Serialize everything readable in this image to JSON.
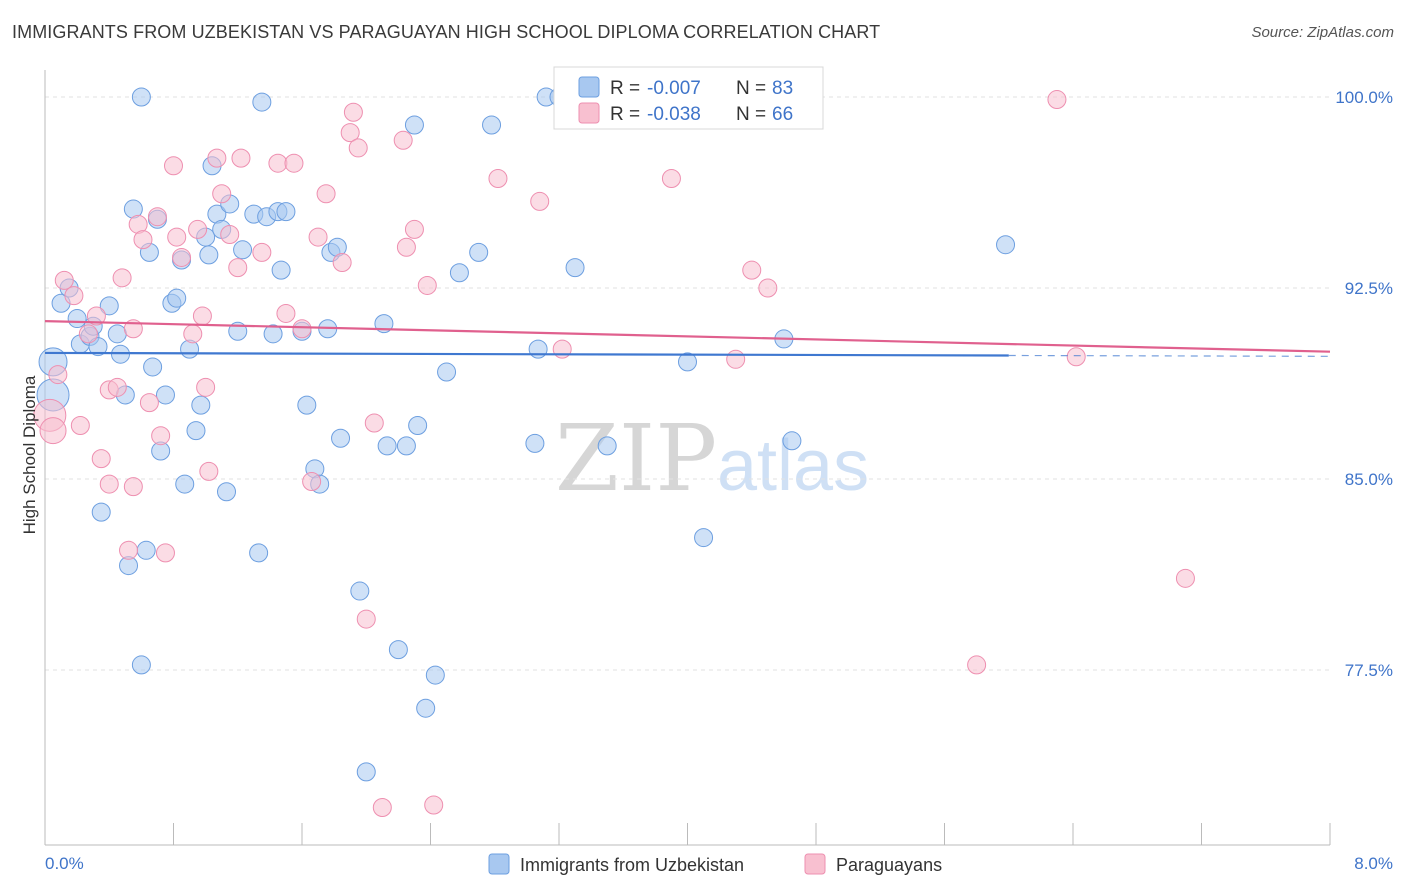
{
  "header": {
    "title": "IMMIGRANTS FROM UZBEKISTAN VS PARAGUAYAN HIGH SCHOOL DIPLOMA CORRELATION CHART",
    "source": "Source: ZipAtlas.com"
  },
  "watermark": {
    "zip": "ZIP",
    "atlas": "atlas"
  },
  "legend_top": {
    "r_label": "R =",
    "n_label": "N =",
    "rows": [
      {
        "r": "-0.007",
        "n": "83",
        "color": "#a8c8f0",
        "stroke": "#6d9fe0"
      },
      {
        "r": "-0.038",
        "n": "66",
        "color": "#f8c0d0",
        "stroke": "#ee8fb0"
      }
    ]
  },
  "chart_data": {
    "type": "scatter",
    "title": "IMMIGRANTS FROM UZBEKISTAN VS PARAGUAYAN HIGH SCHOOL DIPLOMA CORRELATION CHART",
    "xlabel": "",
    "ylabel": "High School Diploma",
    "xlim": [
      0,
      8
    ],
    "ylim": [
      71.5,
      100.8
    ],
    "x_tick_labels": [
      "0.0%",
      "8.0%"
    ],
    "y_ticks": [
      77.5,
      85.0,
      92.5,
      100.0
    ],
    "y_tick_labels": [
      "77.5%",
      "85.0%",
      "92.5%",
      "100.0%"
    ],
    "grid": "horizontal dashed",
    "legend_position": "top-center",
    "series": [
      {
        "name": "Immigrants from Uzbekistan",
        "color": "#a8c8f0",
        "stroke": "#6d9fe0",
        "trend": {
          "x": [
            0.0,
            6.0
          ],
          "y": [
            89.95,
            89.85
          ],
          "dashed_extension_to": 8.0,
          "color": "#3f78d0"
        },
        "points": [
          [
            0.05,
            89.6,
            14
          ],
          [
            0.05,
            88.3,
            16
          ],
          [
            0.1,
            91.9,
            9
          ],
          [
            0.15,
            92.5,
            9
          ],
          [
            0.2,
            91.3,
            9
          ],
          [
            0.22,
            90.3,
            9
          ],
          [
            0.28,
            90.6,
            9
          ],
          [
            0.3,
            91.0,
            9
          ],
          [
            0.33,
            90.2,
            9
          ],
          [
            0.35,
            83.7,
            9
          ],
          [
            0.4,
            91.8,
            9
          ],
          [
            0.45,
            90.7,
            9
          ],
          [
            0.47,
            89.9,
            9
          ],
          [
            0.5,
            88.3,
            9
          ],
          [
            0.52,
            81.6,
            9
          ],
          [
            0.55,
            95.6,
            9
          ],
          [
            0.6,
            77.7,
            9
          ],
          [
            0.63,
            82.2,
            9
          ],
          [
            0.65,
            93.9,
            9
          ],
          [
            0.67,
            89.4,
            9
          ],
          [
            0.7,
            95.2,
            9
          ],
          [
            0.72,
            86.1,
            9
          ],
          [
            0.75,
            88.3,
            9
          ],
          [
            0.79,
            91.9,
            9
          ],
          [
            0.82,
            92.1,
            9
          ],
          [
            0.85,
            93.6,
            9
          ],
          [
            0.87,
            84.8,
            9
          ],
          [
            0.9,
            90.1,
            9
          ],
          [
            0.94,
            86.9,
            9
          ],
          [
            0.97,
            87.9,
            9
          ],
          [
            1.0,
            94.5,
            9
          ],
          [
            1.02,
            93.8,
            9
          ],
          [
            1.04,
            97.3,
            9
          ],
          [
            1.07,
            95.4,
            9
          ],
          [
            1.1,
            94.8,
            9
          ],
          [
            1.13,
            84.5,
            9
          ],
          [
            1.15,
            95.8,
            9
          ],
          [
            1.2,
            90.8,
            9
          ],
          [
            1.23,
            94.0,
            9
          ],
          [
            1.3,
            95.4,
            9
          ],
          [
            1.33,
            82.1,
            9
          ],
          [
            1.35,
            99.8,
            9
          ],
          [
            1.38,
            95.3,
            9
          ],
          [
            1.42,
            90.7,
            9
          ],
          [
            1.45,
            95.5,
            9
          ],
          [
            1.47,
            93.2,
            9
          ],
          [
            1.5,
            95.5,
            9
          ],
          [
            1.6,
            90.8,
            9
          ],
          [
            1.63,
            87.9,
            9
          ],
          [
            1.68,
            85.4,
            9
          ],
          [
            1.71,
            84.8,
            9
          ],
          [
            1.76,
            90.9,
            9
          ],
          [
            1.78,
            93.9,
            9
          ],
          [
            1.82,
            94.1,
            9
          ],
          [
            1.84,
            86.6,
            9
          ],
          [
            1.96,
            80.6,
            9
          ],
          [
            2.0,
            73.5,
            9
          ],
          [
            2.11,
            91.1,
            9
          ],
          [
            2.13,
            86.3,
            9
          ],
          [
            2.2,
            78.3,
            9
          ],
          [
            2.25,
            86.3,
            9
          ],
          [
            2.3,
            98.9,
            9
          ],
          [
            2.32,
            87.1,
            9
          ],
          [
            2.37,
            76.0,
            9
          ],
          [
            2.43,
            77.3,
            9
          ],
          [
            2.5,
            89.2,
            9
          ],
          [
            2.58,
            93.1,
            9
          ],
          [
            2.7,
            93.9,
            9
          ],
          [
            2.78,
            98.9,
            9
          ],
          [
            3.05,
            86.4,
            9
          ],
          [
            3.07,
            90.1,
            9
          ],
          [
            3.12,
            100.0,
            9
          ],
          [
            3.2,
            100.0,
            9
          ],
          [
            3.3,
            93.3,
            9
          ],
          [
            3.5,
            86.3,
            9
          ],
          [
            3.98,
            100.0,
            9
          ],
          [
            4.0,
            89.6,
            9
          ],
          [
            4.1,
            82.7,
            9
          ],
          [
            4.3,
            100.0,
            9
          ],
          [
            4.6,
            90.5,
            9
          ],
          [
            4.65,
            86.5,
            9
          ],
          [
            5.98,
            94.2,
            9
          ],
          [
            0.6,
            100.0,
            9
          ]
        ]
      },
      {
        "name": "Paraguayans",
        "color": "#f8c0d0",
        "stroke": "#ee8fb0",
        "trend": {
          "x": [
            0.0,
            8.0
          ],
          "y": [
            91.2,
            90.0
          ],
          "color": "#e0608e"
        },
        "points": [
          [
            0.03,
            87.5,
            16
          ],
          [
            0.05,
            86.9,
            13
          ],
          [
            0.08,
            89.1,
            9
          ],
          [
            0.12,
            92.8,
            9
          ],
          [
            0.18,
            92.2,
            9
          ],
          [
            0.22,
            87.1,
            9
          ],
          [
            0.27,
            90.7,
            9
          ],
          [
            0.32,
            91.4,
            9
          ],
          [
            0.35,
            85.8,
            9
          ],
          [
            0.4,
            88.5,
            9
          ],
          [
            0.45,
            88.6,
            9
          ],
          [
            0.48,
            92.9,
            9
          ],
          [
            0.52,
            82.2,
            9
          ],
          [
            0.55,
            84.7,
            9
          ],
          [
            0.58,
            95.0,
            9
          ],
          [
            0.61,
            94.4,
            9
          ],
          [
            0.65,
            88.0,
            9
          ],
          [
            0.7,
            95.3,
            9
          ],
          [
            0.72,
            86.7,
            9
          ],
          [
            0.75,
            82.1,
            9
          ],
          [
            0.8,
            97.3,
            9
          ],
          [
            0.82,
            94.5,
            9
          ],
          [
            0.85,
            93.7,
            9
          ],
          [
            0.92,
            90.7,
            9
          ],
          [
            0.95,
            94.8,
            9
          ],
          [
            0.98,
            91.4,
            9
          ],
          [
            1.0,
            88.6,
            9
          ],
          [
            1.02,
            85.3,
            9
          ],
          [
            1.07,
            97.6,
            9
          ],
          [
            1.1,
            96.2,
            9
          ],
          [
            1.15,
            94.6,
            9
          ],
          [
            1.2,
            93.3,
            9
          ],
          [
            1.22,
            97.6,
            9
          ],
          [
            1.35,
            93.9,
            9
          ],
          [
            1.45,
            97.4,
            9
          ],
          [
            1.5,
            91.5,
            9
          ],
          [
            1.55,
            97.4,
            9
          ],
          [
            1.6,
            90.9,
            9
          ],
          [
            1.66,
            84.9,
            9
          ],
          [
            1.7,
            94.5,
            9
          ],
          [
            1.75,
            96.2,
            9
          ],
          [
            1.85,
            93.5,
            9
          ],
          [
            1.9,
            98.6,
            9
          ],
          [
            1.92,
            99.4,
            9
          ],
          [
            1.95,
            98.0,
            9
          ],
          [
            2.0,
            79.5,
            9
          ],
          [
            2.05,
            87.2,
            9
          ],
          [
            2.1,
            72.1,
            9
          ],
          [
            2.23,
            98.3,
            9
          ],
          [
            2.25,
            94.1,
            9
          ],
          [
            2.3,
            94.8,
            9
          ],
          [
            2.38,
            92.6,
            9
          ],
          [
            2.42,
            72.2,
            9
          ],
          [
            2.82,
            96.8,
            9
          ],
          [
            3.08,
            95.9,
            9
          ],
          [
            3.22,
            90.1,
            9
          ],
          [
            3.9,
            96.8,
            9
          ],
          [
            4.3,
            89.7,
            9
          ],
          [
            4.4,
            93.2,
            9
          ],
          [
            4.5,
            92.5,
            9
          ],
          [
            5.8,
            77.7,
            9
          ],
          [
            6.3,
            99.9,
            9
          ],
          [
            6.42,
            89.8,
            9
          ],
          [
            7.1,
            81.1,
            9
          ],
          [
            0.4,
            84.8,
            9
          ],
          [
            0.55,
            90.9,
            9
          ]
        ]
      }
    ]
  },
  "bottom_legend": [
    {
      "label": "Immigrants from Uzbekistan",
      "color": "#a8c8f0",
      "stroke": "#6d9fe0"
    },
    {
      "label": "Paraguayans",
      "color": "#f8c0d0",
      "stroke": "#ee8fb0"
    }
  ]
}
